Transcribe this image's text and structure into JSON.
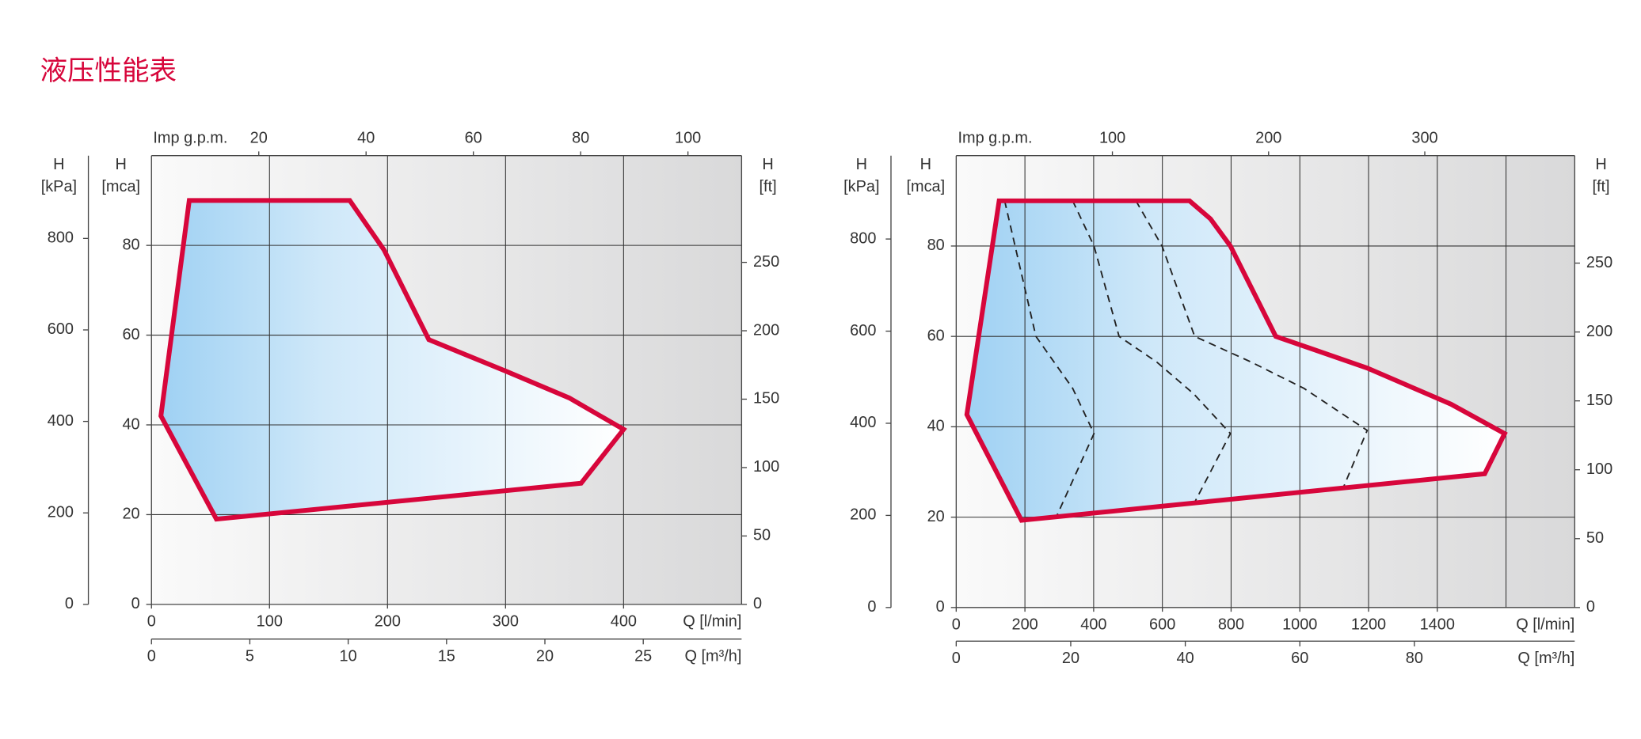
{
  "title": "液压性能表",
  "chart_data": [
    {
      "type": "envelope",
      "xlabel": "Q [l/min]",
      "xlim": [
        0,
        500
      ],
      "xticks": [
        0,
        100,
        200,
        300,
        400
      ],
      "xgrid": [
        100,
        200,
        300,
        400
      ],
      "x2label": "Q [m³/h]",
      "x2lim": [
        0,
        30
      ],
      "x2ticks": [
        0,
        5,
        10,
        15,
        20,
        25
      ],
      "x3label": "Imp g.p.m.",
      "x3lim": [
        0,
        110
      ],
      "x3ticks": [
        20,
        40,
        60,
        80,
        100
      ],
      "ylabel": [
        "H",
        "[mca]"
      ],
      "ylim": [
        0,
        100
      ],
      "yticks": [
        0,
        20,
        40,
        60,
        80
      ],
      "ygrid": [
        20,
        40,
        60,
        80
      ],
      "y2label": [
        "H",
        "[kPa]"
      ],
      "y2lim": [
        0,
        981
      ],
      "y2ticks": [
        0,
        200,
        400,
        600,
        800
      ],
      "y3label": [
        "H",
        "[ft]"
      ],
      "y3lim": [
        0,
        328
      ],
      "y3ticks": [
        0,
        50,
        100,
        150,
        200,
        250
      ],
      "envelope": {
        "color": "#d7063b",
        "x": [
          32,
          168,
          197,
          235,
          300,
          354,
          400,
          364,
          55,
          8
        ],
        "values": [
          90,
          90,
          79,
          59,
          52,
          46,
          39,
          27,
          19,
          42
        ]
      }
    },
    {
      "type": "envelope",
      "xlabel": "Q [l/min]",
      "xlim": [
        0,
        1800
      ],
      "xticks": [
        0,
        200,
        400,
        600,
        800,
        1000,
        1200,
        1400
      ],
      "xgrid": [
        200,
        400,
        600,
        800,
        1000,
        1200,
        1400,
        1600
      ],
      "x2label": "Q [m³/h]",
      "x2lim": [
        0,
        108
      ],
      "x2ticks": [
        0,
        20,
        40,
        60,
        80
      ],
      "x3label": "Imp g.p.m.",
      "x3lim": [
        0,
        396
      ],
      "x3ticks": [
        100,
        200,
        300
      ],
      "ylabel": [
        "H",
        "[mca]"
      ],
      "ylim": [
        0,
        100
      ],
      "yticks": [
        0,
        20,
        40,
        60,
        80
      ],
      "ygrid": [
        20,
        40,
        60,
        80
      ],
      "y2label": [
        "H",
        "[kPa]"
      ],
      "y2lim": [
        0,
        981
      ],
      "y2ticks": [
        0,
        200,
        400,
        600,
        800
      ],
      "y3label": [
        "H",
        "[ft]"
      ],
      "y3lim": [
        0,
        328
      ],
      "y3ticks": [
        0,
        50,
        100,
        150,
        200,
        250
      ],
      "envelope": {
        "color": "#d7063b",
        "x": [
          125,
          679,
          740,
          798,
          930,
          1196,
          1440,
          1596,
          1538,
          190,
          31
        ],
        "values": [
          90,
          90,
          86,
          80,
          60,
          53,
          45,
          38.5,
          29.6,
          19.3,
          42.7
        ]
      },
      "dashed_lines": [
        {
          "color": "#222222",
          "x": [
            141,
            232,
            339,
            401,
            294
          ],
          "values": [
            90,
            60,
            48.5,
            38.5,
            20.5
          ]
        },
        {
          "color": "#222222",
          "x": [
            339,
            401,
            474,
            584,
            691,
            798,
            694
          ],
          "values": [
            90,
            80,
            60,
            54.3,
            47.3,
            38.5,
            23.3
          ]
        },
        {
          "color": "#222222",
          "x": [
            523,
            599,
            694,
            859,
            1012,
            1196,
            1128
          ],
          "values": [
            90,
            80,
            60,
            54.3,
            48.5,
            39.2,
            26.8
          ]
        }
      ]
    }
  ]
}
